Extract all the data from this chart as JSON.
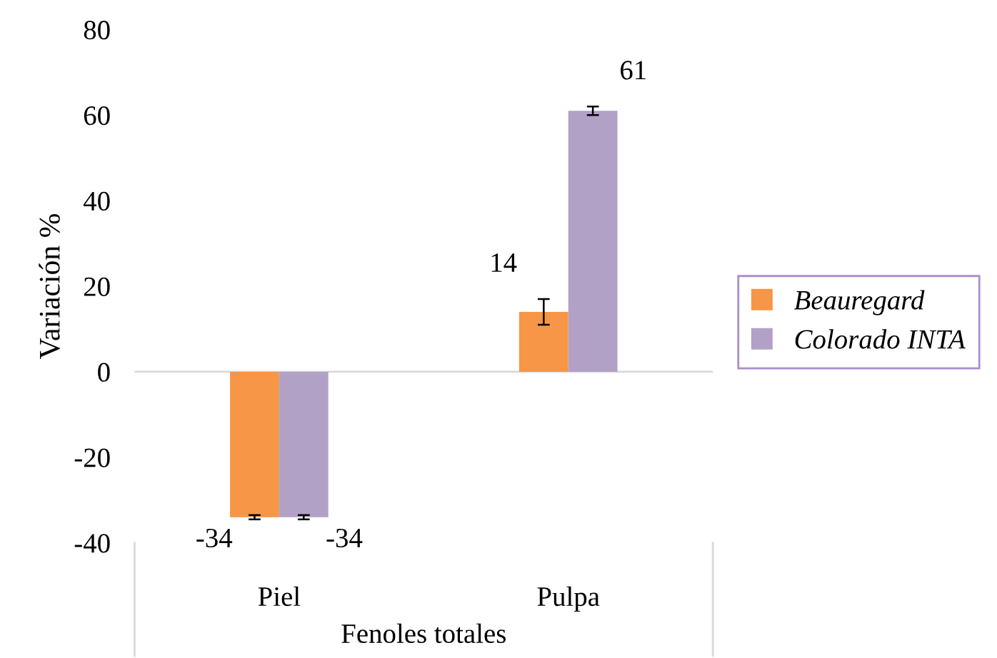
{
  "chart_data": {
    "type": "bar",
    "xlabel": "Fenoles totales",
    "ylabel": "Variación %",
    "categories": [
      "Piel",
      "Pulpa"
    ],
    "series": [
      {
        "name": "Beauregard",
        "color": "#f79646",
        "values": [
          -34,
          14
        ],
        "errors": [
          0.5,
          3
        ]
      },
      {
        "name": "Colorado INTA",
        "color": "#b2a1c7",
        "values": [
          -34,
          61
        ],
        "errors": [
          0.5,
          1
        ]
      }
    ],
    "ylim": [
      -40,
      80
    ],
    "yticks": [
      -40,
      -20,
      0,
      20,
      40,
      60,
      80
    ],
    "ref_lines": [
      {
        "axis": "y",
        "value": 0,
        "color": "#d9d9d9"
      }
    ],
    "data_labels": true,
    "legend": "right",
    "grid": false
  }
}
